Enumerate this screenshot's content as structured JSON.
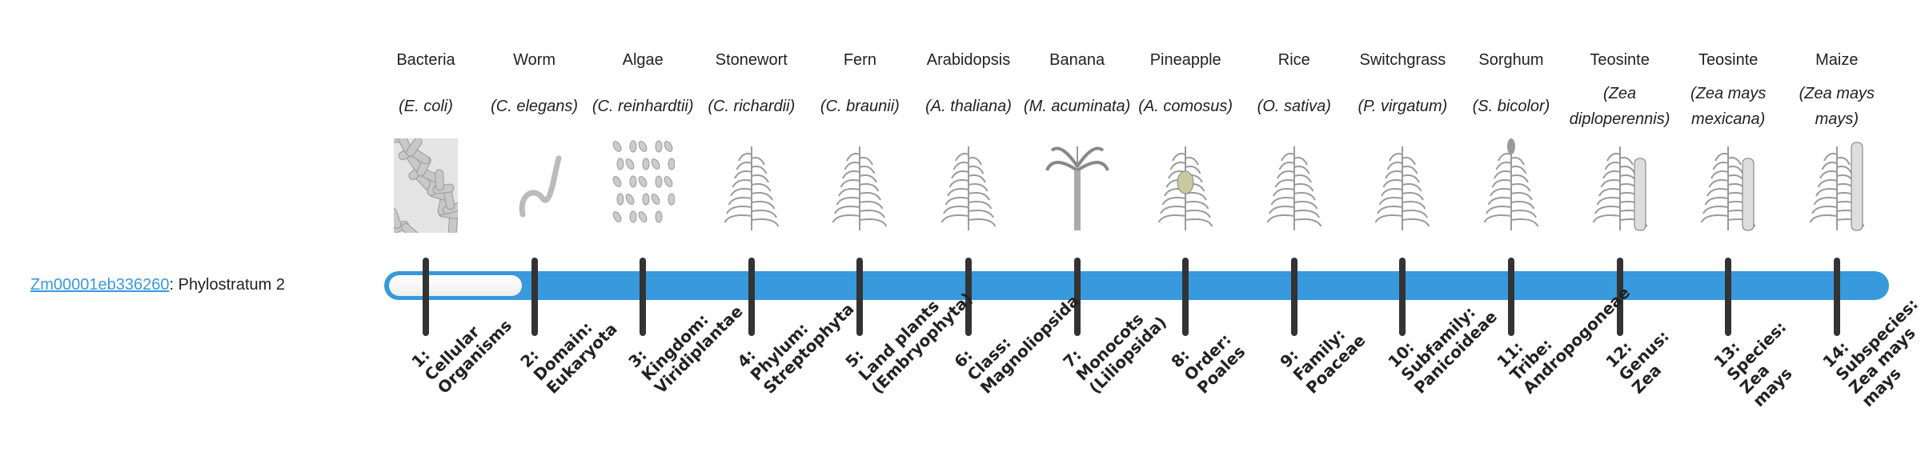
{
  "gene": {
    "id": "Zm00001eb336260",
    "suffix": ": Phylostratum 2"
  },
  "phylostratum": 2,
  "colors": {
    "bar": "#3899dd",
    "tick": "#333333",
    "link": "#3899dd"
  },
  "strata": [
    {
      "common": "Bacteria",
      "sci": "(E. coli)",
      "icon": "bacteria-icon",
      "label": [
        "1:",
        "Cellular",
        "Organisms"
      ]
    },
    {
      "common": "Worm",
      "sci": "(C. elegans)",
      "icon": "worm-icon",
      "label": [
        "2:",
        "Domain:",
        "Eukaryota"
      ]
    },
    {
      "common": "Algae",
      "sci": "(C. reinhardtii)",
      "icon": "algae-icon",
      "label": [
        "3:",
        "Kingdom:",
        "Viridiplantae"
      ]
    },
    {
      "common": "Stonewort",
      "sci": "(C. richardii)",
      "icon": "stonewort-icon",
      "label": [
        "4:",
        "Phylum:",
        "Streptophyta"
      ]
    },
    {
      "common": "Fern",
      "sci": "(C. braunii)",
      "icon": "fern-icon",
      "label": [
        "5:",
        "Land plants",
        "(Embryophyta)"
      ]
    },
    {
      "common": "Arabidopsis",
      "sci": "(A. thaliana)",
      "icon": "arabidopsis-icon",
      "label": [
        "6:",
        "Class:",
        "Magnoliopsida"
      ]
    },
    {
      "common": "Banana",
      "sci": "(M. acuminata)",
      "icon": "banana-icon",
      "label": [
        "7:",
        "Monocots",
        "(Liliopsida)"
      ]
    },
    {
      "common": "Pineapple",
      "sci": "(A. comosus)",
      "icon": "pineapple-icon",
      "label": [
        "8:",
        "Order:",
        "Poales"
      ]
    },
    {
      "common": "Rice",
      "sci": "(O. sativa)",
      "icon": "rice-icon",
      "label": [
        "9:",
        "Family:",
        "Poaceae"
      ]
    },
    {
      "common": "Switchgrass",
      "sci": "(P. virgatum)",
      "icon": "switchgrass-icon",
      "label": [
        "10:",
        "Subfamily:",
        "Panicoideae"
      ]
    },
    {
      "common": "Sorghum",
      "sci": "(S. bicolor)",
      "icon": "sorghum-icon",
      "label": [
        "11:",
        "Tribe:",
        "Andropogoneae"
      ]
    },
    {
      "common": "Teosinte",
      "sci": "(Zea diploperennis)",
      "icon": "teosinte-icon",
      "label": [
        "12:",
        "Genus:",
        "Zea"
      ]
    },
    {
      "common": "Teosinte",
      "sci": "(Zea mays mexicana)",
      "icon": "teosinte-mexicana-icon",
      "label": [
        "13:",
        "Species:",
        "Zea",
        "mays"
      ]
    },
    {
      "common": "Maize",
      "sci": "(Zea mays mays)",
      "icon": "maize-icon",
      "label": [
        "14:",
        "Subspecies:",
        "Zea mays",
        "mays"
      ]
    }
  ]
}
